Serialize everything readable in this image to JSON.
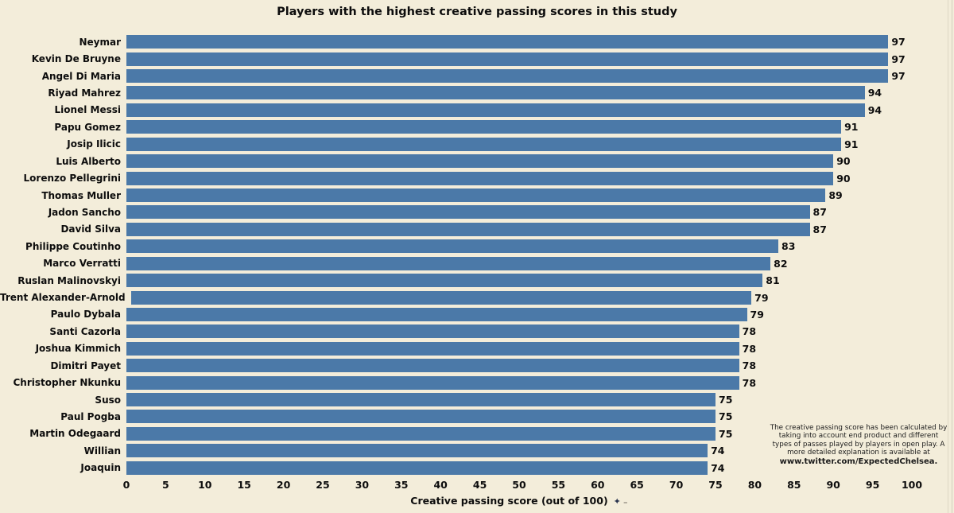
{
  "chart_data": {
    "type": "bar",
    "orientation": "horizontal",
    "title": "Players with the highest creative passing scores in this study",
    "categories": [
      "Neymar",
      "Kevin De Bruyne",
      "Angel Di Maria",
      "Riyad Mahrez",
      "Lionel Messi",
      "Papu Gomez",
      "Josip Ilicic",
      "Luis Alberto",
      "Lorenzo Pellegrini",
      "Thomas Muller",
      "Jadon Sancho",
      "David Silva",
      "Philippe Coutinho",
      "Marco Verratti",
      "Ruslan Malinovskyi",
      "Trent Alexander-Arnold",
      "Paulo Dybala",
      "Santi Cazorla",
      "Joshua Kimmich",
      "Dimitri Payet",
      "Christopher Nkunku",
      "Suso",
      "Paul Pogba",
      "Martin Odegaard",
      "Willian",
      "Joaquin"
    ],
    "values": [
      97,
      97,
      97,
      94,
      94,
      91,
      91,
      90,
      90,
      89,
      87,
      87,
      83,
      82,
      81,
      79,
      79,
      78,
      78,
      78,
      78,
      75,
      75,
      75,
      74,
      74
    ],
    "xlabel": "Creative passing score (out of 100)",
    "xlim": [
      0,
      100
    ],
    "xticks": [
      0,
      5,
      10,
      15,
      20,
      25,
      30,
      35,
      40,
      45,
      50,
      55,
      60,
      65,
      70,
      75,
      80,
      85,
      90,
      95,
      100
    ],
    "grid": false,
    "value_labels": true,
    "bar_color": "#4b79a8",
    "background_color": "#f3edda",
    "text_color": "#0d0d0d"
  },
  "axis_icons": [
    {
      "name": "four-point-star-icon",
      "glyph": "✦"
    },
    {
      "name": "double-dash-icon",
      "glyph": "₌"
    }
  ],
  "annotation": {
    "lines": [
      "The creative passing score has been calculated by",
      "taking into account end product and different",
      "types of passes played by players in open play. A",
      "more detailed explanation is available at"
    ],
    "link": "www.twitter.com/ExpectedChelsea."
  }
}
